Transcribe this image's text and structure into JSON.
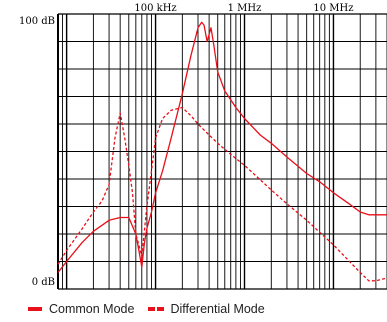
{
  "chart_data": {
    "type": "line",
    "x_scale": "log",
    "x_range_hz": [
      8000,
      40000000
    ],
    "ylim": [
      0,
      100
    ],
    "y_tick_labels": [
      "100 dB",
      "0 dB"
    ],
    "x_tick_labels": [
      {
        "x": 100000,
        "label": "100 kHz"
      },
      {
        "x": 1000000,
        "label": "1 MHz"
      },
      {
        "x": 10000000,
        "label": "10 MHz"
      }
    ],
    "grid": true,
    "legend_position": "bottom",
    "series": [
      {
        "name": "Common Mode",
        "style": "solid",
        "color": "#e8101a",
        "x": [
          8000,
          10000,
          15000,
          20000,
          30000,
          40000,
          50000,
          60000,
          65000,
          70000,
          75000,
          80000,
          90000,
          100000,
          120000,
          150000,
          200000,
          250000,
          300000,
          330000,
          350000,
          380000,
          420000,
          450000,
          500000,
          600000,
          800000,
          1000000,
          1500000,
          2000000,
          3000000,
          5000000,
          7000000,
          10000000,
          15000000,
          20000000,
          25000000,
          30000000,
          35000000,
          40000000
        ],
        "y": [
          6,
          10,
          17,
          21,
          25,
          26,
          26,
          20,
          14,
          8,
          17,
          22,
          28,
          35,
          43,
          55,
          71,
          85,
          95,
          97,
          96,
          90,
          95,
          89,
          79,
          72,
          66,
          62,
          56,
          53,
          48,
          42,
          39,
          35,
          31,
          28,
          27,
          27,
          27,
          27
        ]
      },
      {
        "name": "Differential Mode",
        "style": "dashed",
        "color": "#e8101a",
        "x": [
          8000,
          10000,
          15000,
          20000,
          25000,
          30000,
          35000,
          40000,
          45000,
          50000,
          55000,
          60000,
          70000,
          80000,
          90000,
          100000,
          120000,
          150000,
          200000,
          250000,
          300000,
          400000,
          500000,
          700000,
          1000000,
          2000000,
          3000000,
          5000000,
          10000000,
          20000000,
          25000000,
          30000000,
          40000000
        ],
        "y": [
          9,
          14,
          22,
          28,
          32,
          38,
          55,
          64,
          55,
          45,
          35,
          20,
          12,
          30,
          43,
          55,
          62,
          65,
          66,
          63,
          60,
          56,
          53,
          49,
          45,
          36,
          31,
          25,
          16,
          6,
          3,
          3,
          4
        ]
      }
    ]
  },
  "legend": {
    "common_mode": "Common Mode",
    "differential_mode": "Differential Mode"
  }
}
